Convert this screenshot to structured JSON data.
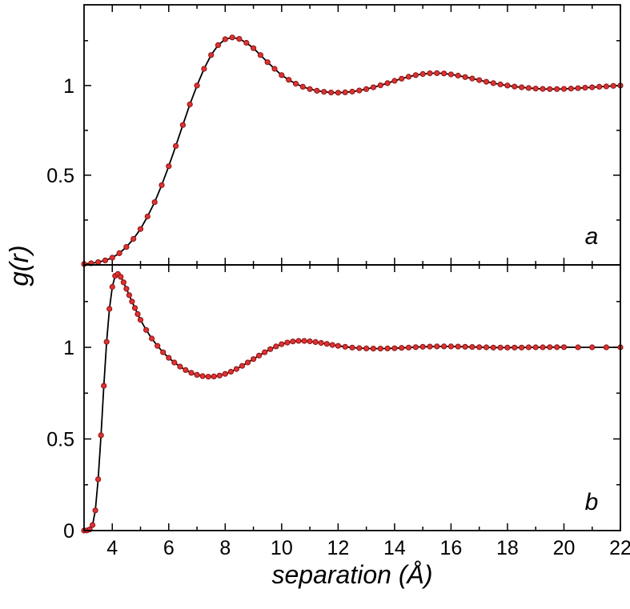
{
  "figure": {
    "xlabel": "separation (Å)",
    "ylabel": "g(r)",
    "background": "#ffffff",
    "frame_color": "#000000",
    "line_color": "#000000",
    "marker_fill": "#dd3333",
    "marker_edge": "#8d1111",
    "text_color": "#000000"
  },
  "chart_data": [
    {
      "id": "panel-a",
      "type": "line",
      "panel_label": "a",
      "xlim": [
        3,
        22
      ],
      "ylim": [
        0,
        1.45
      ],
      "xticks_major": [
        4,
        6,
        8,
        10,
        12,
        14,
        16,
        18,
        20,
        22
      ],
      "xtick_labels": [
        "4",
        "6",
        "8",
        "10",
        "12",
        "14",
        "16",
        "18",
        "20",
        "22"
      ],
      "xticks_minor": [
        5,
        7,
        9,
        11,
        13,
        15,
        17,
        19,
        21
      ],
      "yticks_major": [
        0.5,
        1.0
      ],
      "ytick_labels": [
        "0.5",
        "1"
      ],
      "yticks_minor": [
        0.25,
        0.75,
        1.25
      ],
      "show_x_tick_labels": false,
      "x": [
        3,
        3.25,
        3.5,
        3.75,
        4,
        4.25,
        4.5,
        4.75,
        5,
        5.25,
        5.5,
        5.75,
        6,
        6.25,
        6.5,
        6.75,
        7,
        7.25,
        7.5,
        7.75,
        8,
        8.25,
        8.5,
        8.75,
        9,
        9.25,
        9.5,
        9.75,
        10,
        10.25,
        10.5,
        10.75,
        11,
        11.25,
        11.5,
        11.75,
        12,
        12.25,
        12.5,
        12.75,
        13,
        13.25,
        13.5,
        13.75,
        14,
        14.25,
        14.5,
        14.75,
        15,
        15.25,
        15.5,
        15.75,
        16,
        16.25,
        16.5,
        16.75,
        17,
        17.25,
        17.5,
        17.75,
        18,
        18.25,
        18.5,
        18.75,
        19,
        19.25,
        19.5,
        19.75,
        20,
        20.25,
        20.5,
        20.75,
        21,
        21.25,
        21.5,
        21.75,
        22
      ],
      "y": [
        0.005,
        0.009,
        0.015,
        0.025,
        0.04,
        0.065,
        0.1,
        0.145,
        0.2,
        0.27,
        0.35,
        0.445,
        0.55,
        0.663,
        0.78,
        0.895,
        1.0,
        1.093,
        1.17,
        1.225,
        1.258,
        1.268,
        1.26,
        1.238,
        1.208,
        1.17,
        1.13,
        1.093,
        1.058,
        1.032,
        1.01,
        0.993,
        0.98,
        0.971,
        0.965,
        0.961,
        0.96,
        0.962,
        0.966,
        0.972,
        0.98,
        0.99,
        1.001,
        1.013,
        1.026,
        1.038,
        1.049,
        1.058,
        1.064,
        1.068,
        1.069,
        1.067,
        1.062,
        1.055,
        1.047,
        1.039,
        1.03,
        1.021,
        1.013,
        1.006,
        1.0,
        0.994,
        0.99,
        0.986,
        0.983,
        0.981,
        0.98,
        0.98,
        0.981,
        0.983,
        0.985,
        0.988,
        0.99,
        0.993,
        0.995,
        0.998,
        1.0
      ]
    },
    {
      "id": "panel-b",
      "type": "line",
      "panel_label": "b",
      "xlim": [
        3,
        22
      ],
      "ylim": [
        0,
        1.45
      ],
      "xticks_major": [
        4,
        6,
        8,
        10,
        12,
        14,
        16,
        18,
        20,
        22
      ],
      "xtick_labels": [
        "4",
        "6",
        "8",
        "10",
        "12",
        "14",
        "16",
        "18",
        "20",
        "22"
      ],
      "xticks_minor": [
        5,
        7,
        9,
        11,
        13,
        15,
        17,
        19,
        21
      ],
      "yticks_major": [
        0,
        0.5,
        1.0
      ],
      "ytick_labels": [
        "0",
        "0.5",
        "1"
      ],
      "yticks_minor": [
        0.25,
        0.75,
        1.25
      ],
      "show_x_tick_labels": true,
      "x": [
        3,
        3.1,
        3.2,
        3.3,
        3.4,
        3.5,
        3.6,
        3.7,
        3.8,
        3.9,
        4,
        4.1,
        4.2,
        4.3,
        4.4,
        4.5,
        4.6,
        4.7,
        4.8,
        4.9,
        5,
        5.2,
        5.4,
        5.6,
        5.8,
        6,
        6.2,
        6.4,
        6.6,
        6.8,
        7,
        7.2,
        7.4,
        7.6,
        7.8,
        8,
        8.2,
        8.4,
        8.6,
        8.8,
        9,
        9.2,
        9.4,
        9.6,
        9.8,
        10,
        10.2,
        10.4,
        10.6,
        10.8,
        11,
        11.2,
        11.4,
        11.6,
        11.8,
        12,
        12.25,
        12.5,
        12.75,
        13,
        13.25,
        13.5,
        13.75,
        14,
        14.25,
        14.5,
        14.75,
        15,
        15.25,
        15.5,
        15.75,
        16,
        16.25,
        16.5,
        16.75,
        17,
        17.25,
        17.5,
        17.75,
        18,
        18.25,
        18.5,
        18.75,
        19,
        19.25,
        19.5,
        19.75,
        20,
        20.5,
        21,
        21.5,
        22
      ],
      "y": [
        0,
        0.001,
        0.006,
        0.03,
        0.11,
        0.28,
        0.52,
        0.79,
        1.03,
        1.21,
        1.33,
        1.39,
        1.4,
        1.385,
        1.355,
        1.32,
        1.285,
        1.25,
        1.215,
        1.182,
        1.15,
        1.095,
        1.048,
        1.008,
        0.973,
        0.943,
        0.917,
        0.895,
        0.876,
        0.861,
        0.85,
        0.843,
        0.84,
        0.841,
        0.846,
        0.855,
        0.867,
        0.882,
        0.899,
        0.917,
        0.936,
        0.955,
        0.973,
        0.99,
        1.005,
        1.017,
        1.026,
        1.032,
        1.035,
        1.035,
        1.033,
        1.029,
        1.024,
        1.019,
        1.013,
        1.008,
        1.003,
        0.999,
        0.996,
        0.994,
        0.993,
        0.993,
        0.994,
        0.995,
        0.997,
        0.999,
        1.001,
        1.003,
        1.004,
        1.005,
        1.005,
        1.005,
        1.004,
        1.003,
        1.002,
        1.001,
        1.0,
        0.999,
        0.999,
        0.999,
        0.999,
        0.999,
        1.0,
        1.0,
        1.0,
        1.001,
        1.001,
        1.001,
        1.0,
        1.0,
        1.0,
        1.0
      ]
    }
  ]
}
